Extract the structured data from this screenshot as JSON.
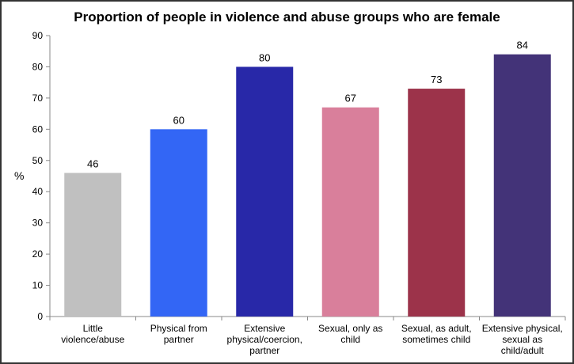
{
  "chart_data": {
    "type": "bar",
    "title": "Proportion of people in violence and abuse groups who are female",
    "xlabel": "",
    "ylabel": "%",
    "ylim": [
      0,
      90
    ],
    "yticks": [
      0,
      10,
      20,
      30,
      40,
      50,
      60,
      70,
      80,
      90
    ],
    "grid": false,
    "categories": [
      "Little violence/abuse",
      "Physical from partner",
      "Extensive physical/coercion, partner",
      "Sexual, only as child",
      "Sexual, as adult, sometimes child",
      "Extensive physical, sexual as child/adult"
    ],
    "values": [
      46,
      60,
      80,
      67,
      73,
      84
    ],
    "colors": [
      "#c0c0c0",
      "#3366f5",
      "#2828a8",
      "#d97f9b",
      "#9c334a",
      "#433378"
    ]
  }
}
